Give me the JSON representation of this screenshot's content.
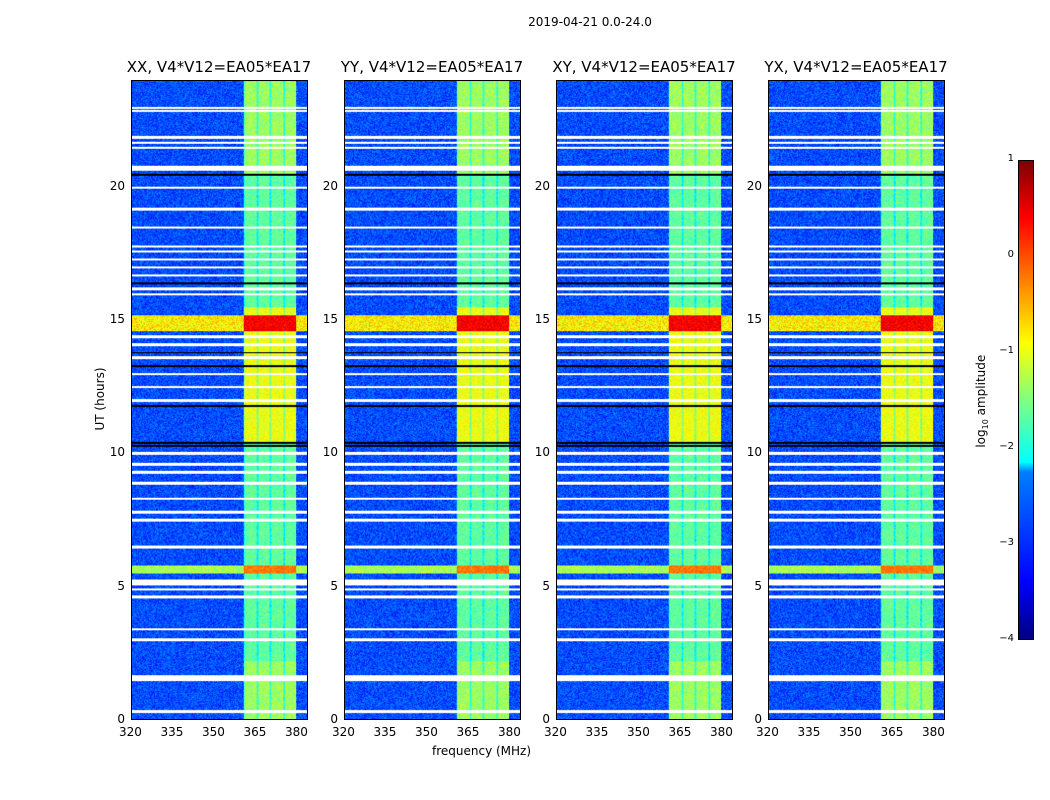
{
  "chart_data": {
    "type": "heatmap",
    "title": "2019-04-21 0.0-24.0",
    "xlabel": "frequency (MHz)",
    "ylabel": "UT (hours)",
    "xlim": [
      320,
      384
    ],
    "ylim": [
      0,
      24
    ],
    "xticks": [
      "320",
      "335",
      "350",
      "365",
      "380"
    ],
    "xtick_values": [
      320,
      335,
      350,
      365,
      380
    ],
    "yticks": [
      "0",
      "5",
      "10",
      "15",
      "20"
    ],
    "ytick_values": [
      0,
      5,
      10,
      15,
      20
    ],
    "panels": [
      {
        "title": "XX, V4*V12=EA05*EA17"
      },
      {
        "title": "YY, V4*V12=EA05*EA17"
      },
      {
        "title": "XY, V4*V12=EA05*EA17"
      },
      {
        "title": "YX, V4*V12=EA05*EA17"
      }
    ],
    "colorbar": {
      "label_prefix": "log",
      "label_sub": "10",
      "label_suffix": " amplitude",
      "range": [
        -4,
        1
      ],
      "ticks": [
        "1",
        "0",
        "−1",
        "−2",
        "−3",
        "−4"
      ],
      "tick_values": [
        1,
        0,
        -1,
        -2,
        -3,
        -4
      ],
      "colormap": "jet"
    },
    "rfi_band_mhz": [
      360.5,
      380
    ],
    "flagged_hours": [
      0.3,
      1.5,
      1.6,
      3.0,
      3.4,
      4.6,
      4.9,
      5.1,
      5.2,
      6.5,
      7.5,
      7.8,
      8.3,
      8.9,
      9.3,
      9.6,
      10.0,
      12.0,
      12.5,
      13.0,
      13.6,
      14.1,
      14.4,
      16.0,
      16.2,
      16.7,
      17.0,
      17.3,
      17.6,
      17.8,
      18.5,
      19.2,
      20.0,
      20.7,
      20.8,
      21.5,
      21.7,
      21.9,
      22.9,
      23.0
    ],
    "dark_hours": [
      10.3,
      10.4,
      11.8,
      13.3,
      13.8,
      16.4,
      20.5
    ],
    "strong_rfi_hours": [
      [
        14.6,
        15.2
      ],
      [
        5.5,
        5.8
      ]
    ]
  }
}
